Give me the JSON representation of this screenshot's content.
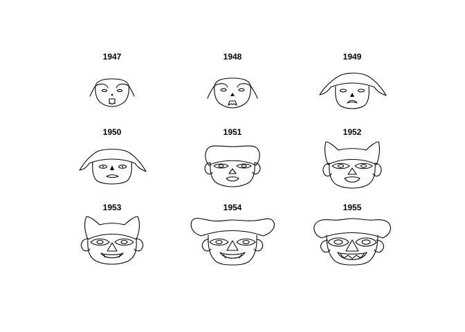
{
  "panels": [
    {
      "year": "1947"
    },
    {
      "year": "1948"
    },
    {
      "year": "1949"
    },
    {
      "year": "1950"
    },
    {
      "year": "1951"
    },
    {
      "year": "1952"
    },
    {
      "year": "1953"
    },
    {
      "year": "1954"
    },
    {
      "year": "1955"
    }
  ]
}
